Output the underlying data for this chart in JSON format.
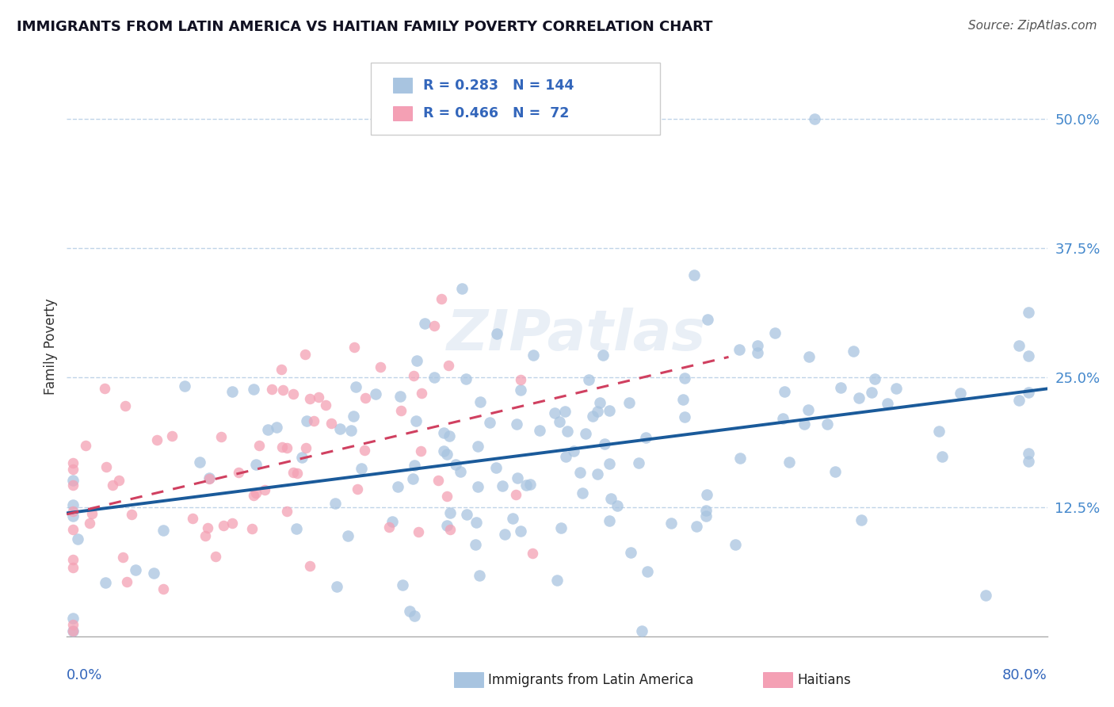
{
  "title": "IMMIGRANTS FROM LATIN AMERICA VS HAITIAN FAMILY POVERTY CORRELATION CHART",
  "source": "Source: ZipAtlas.com",
  "ylabel": "Family Poverty",
  "ytick_labels": [
    "12.5%",
    "25.0%",
    "37.5%",
    "50.0%"
  ],
  "ytick_values": [
    0.125,
    0.25,
    0.375,
    0.5
  ],
  "xmin": 0.0,
  "xmax": 0.8,
  "ymin": 0.0,
  "ymax": 0.56,
  "color_blue": "#a8c4e0",
  "color_pink": "#f4a0b4",
  "color_blue_line": "#1a5a9a",
  "color_pink_line": "#d04060",
  "color_legend_text": "#3366bb",
  "color_grid": "#c0d4e8",
  "R1": 0.283,
  "N1": 144,
  "R2": 0.466,
  "N2": 72,
  "blue_seed": 10,
  "pink_seed": 20
}
